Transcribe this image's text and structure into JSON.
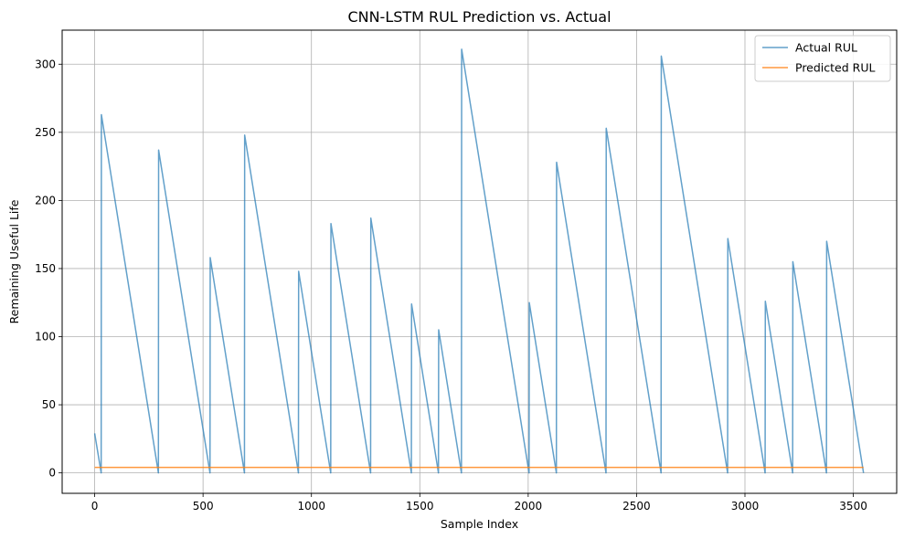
{
  "chart_data": {
    "type": "line",
    "title": "CNN-LSTM RUL Prediction vs. Actual",
    "xlabel": "Sample Index",
    "ylabel": "Remaining Useful Life",
    "xlim": [
      -150,
      3700
    ],
    "ylim": [
      -15,
      325
    ],
    "xticks": [
      0,
      500,
      1000,
      1500,
      2000,
      2500,
      3000,
      3500
    ],
    "yticks": [
      0,
      50,
      100,
      150,
      200,
      250,
      300
    ],
    "grid": true,
    "legend_position": "top-right",
    "series": [
      {
        "name": "Actual RUL",
        "color": "#1f77b4",
        "opacity": 0.7,
        "points": [
          [
            0,
            29
          ],
          [
            30,
            0
          ],
          [
            31,
            263
          ],
          [
            294,
            0
          ],
          [
            295,
            237
          ],
          [
            532,
            0
          ],
          [
            533,
            158
          ],
          [
            691,
            0
          ],
          [
            692,
            248
          ],
          [
            940,
            0
          ],
          [
            941,
            148
          ],
          [
            1089,
            0
          ],
          [
            1090,
            183
          ],
          [
            1273,
            0
          ],
          [
            1274,
            187
          ],
          [
            1461,
            0
          ],
          [
            1462,
            124
          ],
          [
            1586,
            0
          ],
          [
            1587,
            105
          ],
          [
            1692,
            0
          ],
          [
            1693,
            311
          ],
          [
            2004,
            0
          ],
          [
            2005,
            125
          ],
          [
            2130,
            0
          ],
          [
            2131,
            228
          ],
          [
            2359,
            0
          ],
          [
            2360,
            253
          ],
          [
            2613,
            0
          ],
          [
            2614,
            306
          ],
          [
            2920,
            0
          ],
          [
            2921,
            172
          ],
          [
            3093,
            0
          ],
          [
            3094,
            126
          ],
          [
            3220,
            0
          ],
          [
            3221,
            155
          ],
          [
            3376,
            0
          ],
          [
            3377,
            170
          ],
          [
            3547,
            0
          ]
        ]
      },
      {
        "name": "Predicted RUL",
        "color": "#ff7f0e",
        "opacity": 0.8,
        "points": [
          [
            0,
            4
          ],
          [
            3547,
            4
          ]
        ]
      }
    ]
  }
}
